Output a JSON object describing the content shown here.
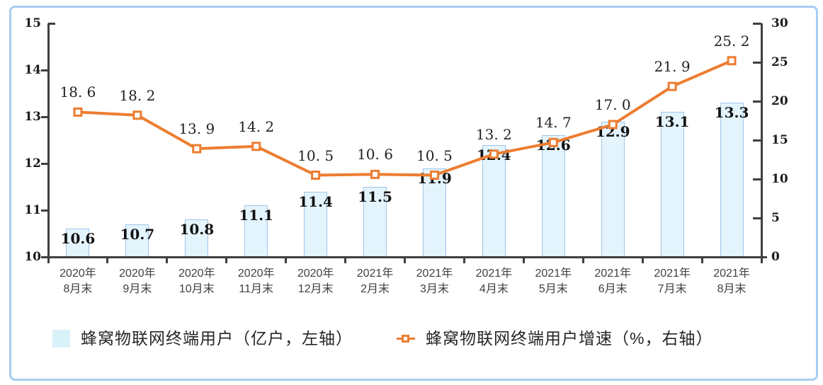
{
  "chart_data": {
    "type": "combo_bar_line",
    "title": "",
    "categories": [
      {
        "line1": "2020年",
        "line2": "8月末"
      },
      {
        "line1": "2020年",
        "line2": "9月末"
      },
      {
        "line1": "2020年",
        "line2": "10月末"
      },
      {
        "line1": "2020年",
        "line2": "11月末"
      },
      {
        "line1": "2020年",
        "line2": "12月末"
      },
      {
        "line1": "2021年",
        "line2": "2月末"
      },
      {
        "line1": "2021年",
        "line2": "3月末"
      },
      {
        "line1": "2021年",
        "line2": "4月末"
      },
      {
        "line1": "2021年",
        "line2": "5月末"
      },
      {
        "line1": "2021年",
        "line2": "6月末"
      },
      {
        "line1": "2021年",
        "line2": "7月末"
      },
      {
        "line1": "2021年",
        "line2": "8月末"
      }
    ],
    "series": [
      {
        "name": "蜂窝物联网终端用户（亿户，左轴）",
        "type": "bar",
        "axis": "left",
        "values": [
          10.6,
          10.7,
          10.8,
          11.1,
          11.4,
          11.5,
          11.9,
          12.4,
          12.6,
          12.9,
          13.1,
          13.3
        ],
        "labels": [
          "10.6",
          "10.7",
          "10.8",
          "11.1",
          "11.4",
          "11.5",
          "11.9",
          "12.4",
          "12.6",
          "12.9",
          "13.1",
          "13.3"
        ]
      },
      {
        "name": "蜂窝物联网终端用户增速（%，右轴）",
        "type": "line",
        "axis": "right",
        "values": [
          18.6,
          18.2,
          13.9,
          14.2,
          10.5,
          10.6,
          10.5,
          13.2,
          14.7,
          17.0,
          21.9,
          25.2
        ],
        "labels": [
          "18. 6",
          "18. 2",
          "13. 9",
          "14. 2",
          "10. 5",
          "10. 6",
          "10. 5",
          "13. 2",
          "14. 7",
          "17. 0",
          "21. 9",
          "25. 2"
        ]
      }
    ],
    "left_axis": {
      "min": 10,
      "max": 15,
      "step": 1,
      "tick_labels": [
        "10",
        "11",
        "12",
        "13",
        "14",
        "15"
      ]
    },
    "right_axis": {
      "min": 0,
      "max": 30,
      "step": 5,
      "tick_labels": [
        "0",
        "5",
        "10",
        "15",
        "20",
        "25",
        "30"
      ]
    },
    "legend_position": "bottom",
    "grid": false
  },
  "colors": {
    "bar_fill": "#e3f4fd",
    "bar_border": "#9fc5e8",
    "legend_swatch": "#d8f2fa",
    "line": "#ed7d31",
    "marker_fill": "#ffffff",
    "axis": "#3f3f3f",
    "frame_border": "#a9cdf0"
  }
}
